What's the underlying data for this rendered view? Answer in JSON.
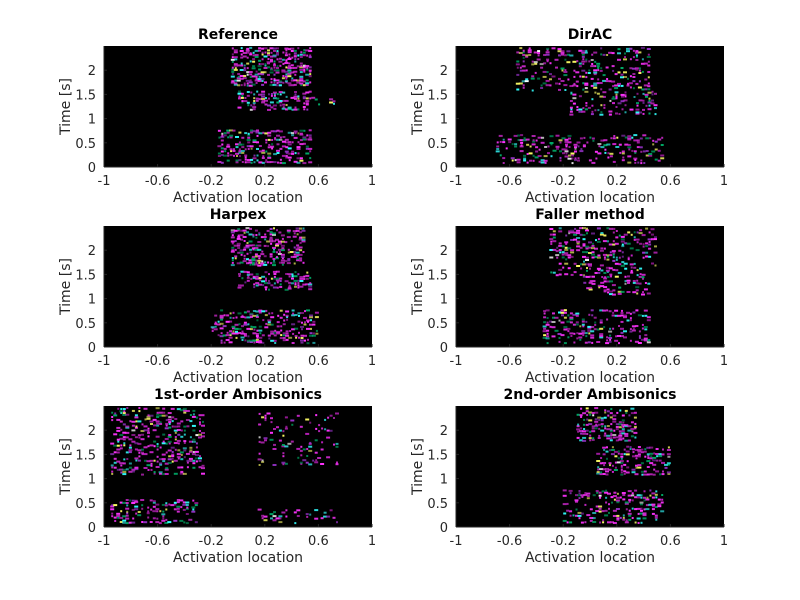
{
  "chart_data": [
    {
      "type": "heatmap",
      "title": "Reference",
      "xlabel": "Activation location",
      "ylabel": "Time [s]",
      "xlim": [
        -1,
        1
      ],
      "ylim": [
        0,
        2.5
      ],
      "x_ticks": [
        "-1",
        "-0.6",
        "-0.2",
        "0.2",
        "0.6",
        "1"
      ],
      "y_ticks": [
        "0",
        "0.5",
        "1",
        "1.5",
        "2"
      ],
      "clusters": [
        {
          "x": [
            -0.05,
            0.55
          ],
          "y": [
            1.7,
            2.5
          ],
          "density": 0.9
        },
        {
          "x": [
            0.0,
            0.55
          ],
          "y": [
            1.2,
            1.6
          ],
          "density": 0.8
        },
        {
          "x": [
            -0.15,
            0.55
          ],
          "y": [
            0.1,
            0.8
          ],
          "density": 0.75
        },
        {
          "x": [
            0.55,
            0.75
          ],
          "y": [
            1.3,
            1.5
          ],
          "density": 0.3
        }
      ]
    },
    {
      "type": "heatmap",
      "title": "DirAC",
      "xlabel": "Activation location",
      "ylabel": "Time [s]",
      "xlim": [
        -1,
        1
      ],
      "ylim": [
        0,
        2.5
      ],
      "x_ticks": [
        "-1",
        "-0.6",
        "-0.2",
        "0.2",
        "0.6",
        "1"
      ],
      "y_ticks": [
        "0",
        "0.5",
        "1",
        "1.5",
        "2"
      ],
      "clusters": [
        {
          "x": [
            -0.55,
            0.45
          ],
          "y": [
            1.6,
            2.5
          ],
          "density": 0.55
        },
        {
          "x": [
            -0.15,
            0.5
          ],
          "y": [
            1.1,
            1.6
          ],
          "density": 0.55
        },
        {
          "x": [
            -0.7,
            0.55
          ],
          "y": [
            0.1,
            0.7
          ],
          "density": 0.5
        }
      ]
    },
    {
      "type": "heatmap",
      "title": "Harpex",
      "xlabel": "Activation location",
      "ylabel": "Time [s]",
      "xlim": [
        -1,
        1
      ],
      "ylim": [
        0,
        2.5
      ],
      "x_ticks": [
        "-1",
        "-0.6",
        "-0.2",
        "0.2",
        "0.6",
        "1"
      ],
      "y_ticks": [
        "0",
        "0.5",
        "1",
        "1.5",
        "2"
      ],
      "clusters": [
        {
          "x": [
            -0.05,
            0.5
          ],
          "y": [
            1.7,
            2.5
          ],
          "density": 0.9
        },
        {
          "x": [
            0.0,
            0.55
          ],
          "y": [
            1.2,
            1.6
          ],
          "density": 0.8
        },
        {
          "x": [
            -0.2,
            0.6
          ],
          "y": [
            0.1,
            0.8
          ],
          "density": 0.75
        }
      ]
    },
    {
      "type": "heatmap",
      "title": "Faller method",
      "xlabel": "Activation location",
      "ylabel": "Time [s]",
      "xlim": [
        -1,
        1
      ],
      "ylim": [
        0,
        2.5
      ],
      "x_ticks": [
        "-1",
        "-0.6",
        "-0.2",
        "0.2",
        "0.6",
        "1"
      ],
      "y_ticks": [
        "0",
        "0.5",
        "1",
        "1.5",
        "2"
      ],
      "clusters": [
        {
          "x": [
            -0.3,
            0.5
          ],
          "y": [
            1.5,
            2.5
          ],
          "density": 0.55
        },
        {
          "x": [
            -0.05,
            0.45
          ],
          "y": [
            1.1,
            1.5
          ],
          "density": 0.5
        },
        {
          "x": [
            -0.35,
            0.45
          ],
          "y": [
            0.1,
            0.8
          ],
          "density": 0.55
        }
      ]
    },
    {
      "type": "heatmap",
      "title": "1st-order Ambisonics",
      "xlabel": "Activation location",
      "ylabel": "Time [s]",
      "xlim": [
        -1,
        1
      ],
      "ylim": [
        0,
        2.5
      ],
      "x_ticks": [
        "-1",
        "-0.6",
        "-0.2",
        "0.2",
        "0.6",
        "1"
      ],
      "y_ticks": [
        "0",
        "0.5",
        "1",
        "1.5",
        "2"
      ],
      "clusters": [
        {
          "x": [
            -0.95,
            -0.25
          ],
          "y": [
            1.1,
            2.5
          ],
          "density": 0.65
        },
        {
          "x": [
            -0.95,
            -0.3
          ],
          "y": [
            0.1,
            0.6
          ],
          "density": 0.6
        },
        {
          "x": [
            0.15,
            0.75
          ],
          "y": [
            1.3,
            2.4
          ],
          "density": 0.3
        },
        {
          "x": [
            0.15,
            0.75
          ],
          "y": [
            0.1,
            0.4
          ],
          "density": 0.3
        }
      ]
    },
    {
      "type": "heatmap",
      "title": "2nd-order Ambisonics",
      "xlabel": "Activation location",
      "ylabel": "Time [s]",
      "xlim": [
        -1,
        1
      ],
      "ylim": [
        0,
        2.5
      ],
      "x_ticks": [
        "-1",
        "-0.6",
        "-0.2",
        "0.2",
        "0.6",
        "1"
      ],
      "y_ticks": [
        "0",
        "0.5",
        "1",
        "1.5",
        "2"
      ],
      "clusters": [
        {
          "x": [
            -0.1,
            0.35
          ],
          "y": [
            1.8,
            2.5
          ],
          "density": 0.8
        },
        {
          "x": [
            0.05,
            0.6
          ],
          "y": [
            1.1,
            1.7
          ],
          "density": 0.75
        },
        {
          "x": [
            -0.2,
            0.55
          ],
          "y": [
            0.1,
            0.8
          ],
          "density": 0.65
        }
      ]
    }
  ],
  "colors": {
    "background": "#000000",
    "palette": [
      "#ff33ff",
      "#cc22cc",
      "#ffff66",
      "#33ffff",
      "#00aa66",
      "#9933cc",
      "#ffffff"
    ]
  }
}
